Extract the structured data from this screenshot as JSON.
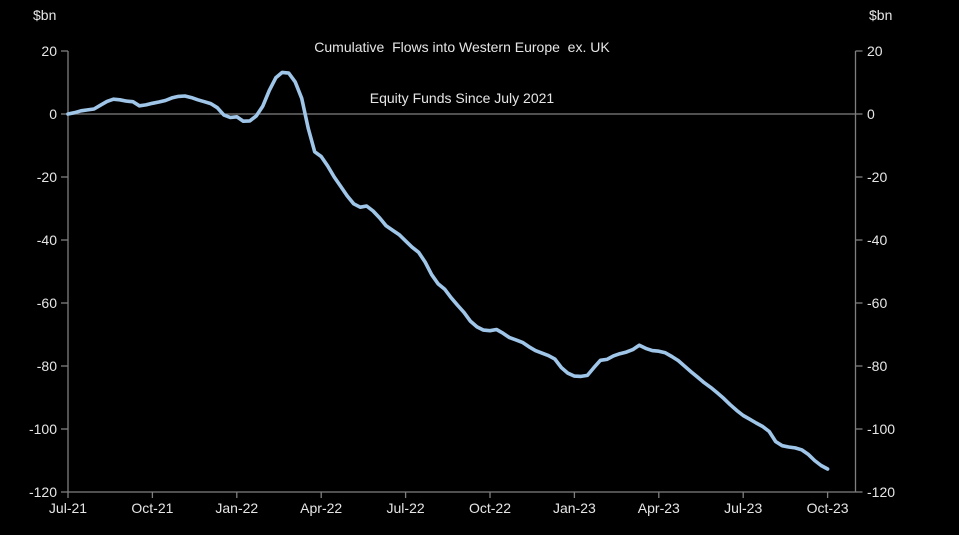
{
  "colors": {
    "background": "#000000",
    "text": "#e6e6e6",
    "axis": "#7f7f7f",
    "line": "#9fc5e8"
  },
  "chart_data": {
    "type": "line",
    "title": "Cumulative  Flows into Western Europe  ex. UK",
    "subtitle": "Equity Funds Since July 2021",
    "ylabel_left": "$bn",
    "ylabel_right": "$bn",
    "ylim": [
      -120,
      20
    ],
    "y_ticks": [
      20,
      0,
      -20,
      -40,
      -60,
      -80,
      -100,
      -120
    ],
    "x_tick_labels": [
      "Jul-21",
      "Oct-21",
      "Jan-22",
      "Apr-22",
      "Jul-22",
      "Oct-22",
      "Jan-23",
      "Apr-23",
      "Jul-23",
      "Oct-23"
    ],
    "x_range": [
      "Jul-21",
      "Oct-23"
    ],
    "frequency": "weekly",
    "zero_line": true,
    "grid": false,
    "legend": "none",
    "series": [
      {
        "name": "Cumulative flows into Western Europe ex. UK equity funds ($bn)",
        "values": [
          0.0,
          0.4,
          1.0,
          1.3,
          1.6,
          2.8,
          4.0,
          4.7,
          4.5,
          4.1,
          3.9,
          2.6,
          2.9,
          3.4,
          3.8,
          4.3,
          5.1,
          5.6,
          5.7,
          5.2,
          4.5,
          3.9,
          3.3,
          2.0,
          -0.3,
          -1.1,
          -0.9,
          -2.3,
          -2.2,
          -0.6,
          2.5,
          7.5,
          11.5,
          13.2,
          13.0,
          10.2,
          5.0,
          -4.5,
          -12.0,
          -13.5,
          -16.5,
          -20.0,
          -23.0,
          -26.0,
          -28.5,
          -29.6,
          -29.2,
          -30.8,
          -33.0,
          -35.5,
          -36.9,
          -38.3,
          -40.3,
          -42.3,
          -43.9,
          -47.0,
          -51.0,
          -53.9,
          -55.6,
          -58.3,
          -60.7,
          -63.0,
          -65.8,
          -67.6,
          -68.6,
          -68.8,
          -68.4,
          -69.6,
          -71.0,
          -71.7,
          -72.5,
          -73.9,
          -75.1,
          -75.9,
          -76.7,
          -77.8,
          -80.5,
          -82.3,
          -83.2,
          -83.3,
          -83.0,
          -80.5,
          -78.2,
          -77.9,
          -76.8,
          -76.1,
          -75.6,
          -74.8,
          -73.4,
          -74.4,
          -75.1,
          -75.3,
          -75.8,
          -77.0,
          -78.3,
          -80.1,
          -81.9,
          -83.6,
          -85.3,
          -86.8,
          -88.5,
          -90.3,
          -92.3,
          -94.1,
          -95.7,
          -96.9,
          -98.1,
          -99.2,
          -100.8,
          -104.0,
          -105.3,
          -105.7,
          -106.0,
          -106.6,
          -108.0,
          -110.0,
          -111.6,
          -112.7
        ]
      }
    ]
  }
}
